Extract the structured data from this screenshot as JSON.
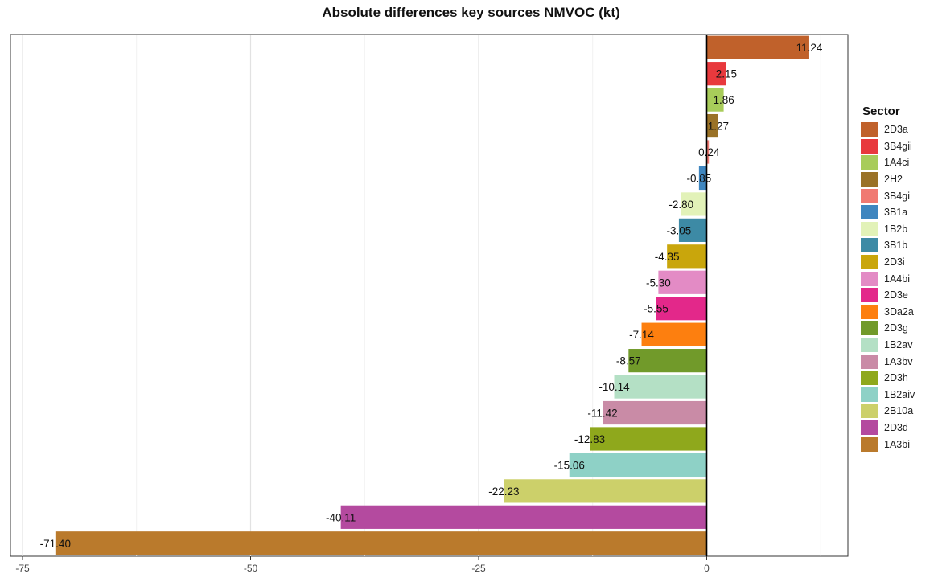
{
  "chart_data": {
    "type": "bar",
    "orientation": "horizontal",
    "title": "Absolute differences key sources NMVOC (kt)",
    "xlabel": "",
    "ylabel": "",
    "xlim": [
      -75,
      15
    ],
    "xticks": [
      -75,
      -50,
      -25,
      0
    ],
    "grid": true,
    "legend_title": "Sector",
    "legend_position": "right",
    "categories": [
      "2D3a",
      "3B4gii",
      "1A4ci",
      "2H2",
      "3B4gi",
      "3B1a",
      "1B2b",
      "3B1b",
      "2D3i",
      "1A4bi",
      "2D3e",
      "3Da2a",
      "2D3g",
      "1B2av",
      "1A3bv",
      "2D3h",
      "1B2aiv",
      "2B10a",
      "2D3d",
      "1A3bi"
    ],
    "values": [
      11.24,
      2.15,
      1.86,
      1.27,
      0.24,
      -0.85,
      -2.8,
      -3.05,
      -4.35,
      -5.3,
      -5.55,
      -7.14,
      -8.57,
      -10.14,
      -11.42,
      -12.83,
      -15.06,
      -22.23,
      -40.11,
      -71.4
    ],
    "labels": [
      "11.24",
      "2.15",
      "1.86",
      "1.27",
      "0.24",
      "-0.85",
      "-2.80",
      "-3.05",
      "-4.35",
      "-5.30",
      "-5.55",
      "-7.14",
      "-8.57",
      "-10.14",
      "-11.42",
      "-12.83",
      "-15.06",
      "-22.23",
      "-40.11",
      "-71.40"
    ],
    "colors": [
      "#c0612b",
      "#e8393d",
      "#a8cc5a",
      "#9a7227",
      "#f07a72",
      "#3f86bf",
      "#e2f2b8",
      "#3d8aa5",
      "#c9a60c",
      "#e38bc5",
      "#e3288a",
      "#fd7f0f",
      "#719a2a",
      "#b4e0c5",
      "#c98ba6",
      "#8fa81c",
      "#8ed1c6",
      "#ccd06a",
      "#b44a9f",
      "#ba7a2c"
    ]
  }
}
